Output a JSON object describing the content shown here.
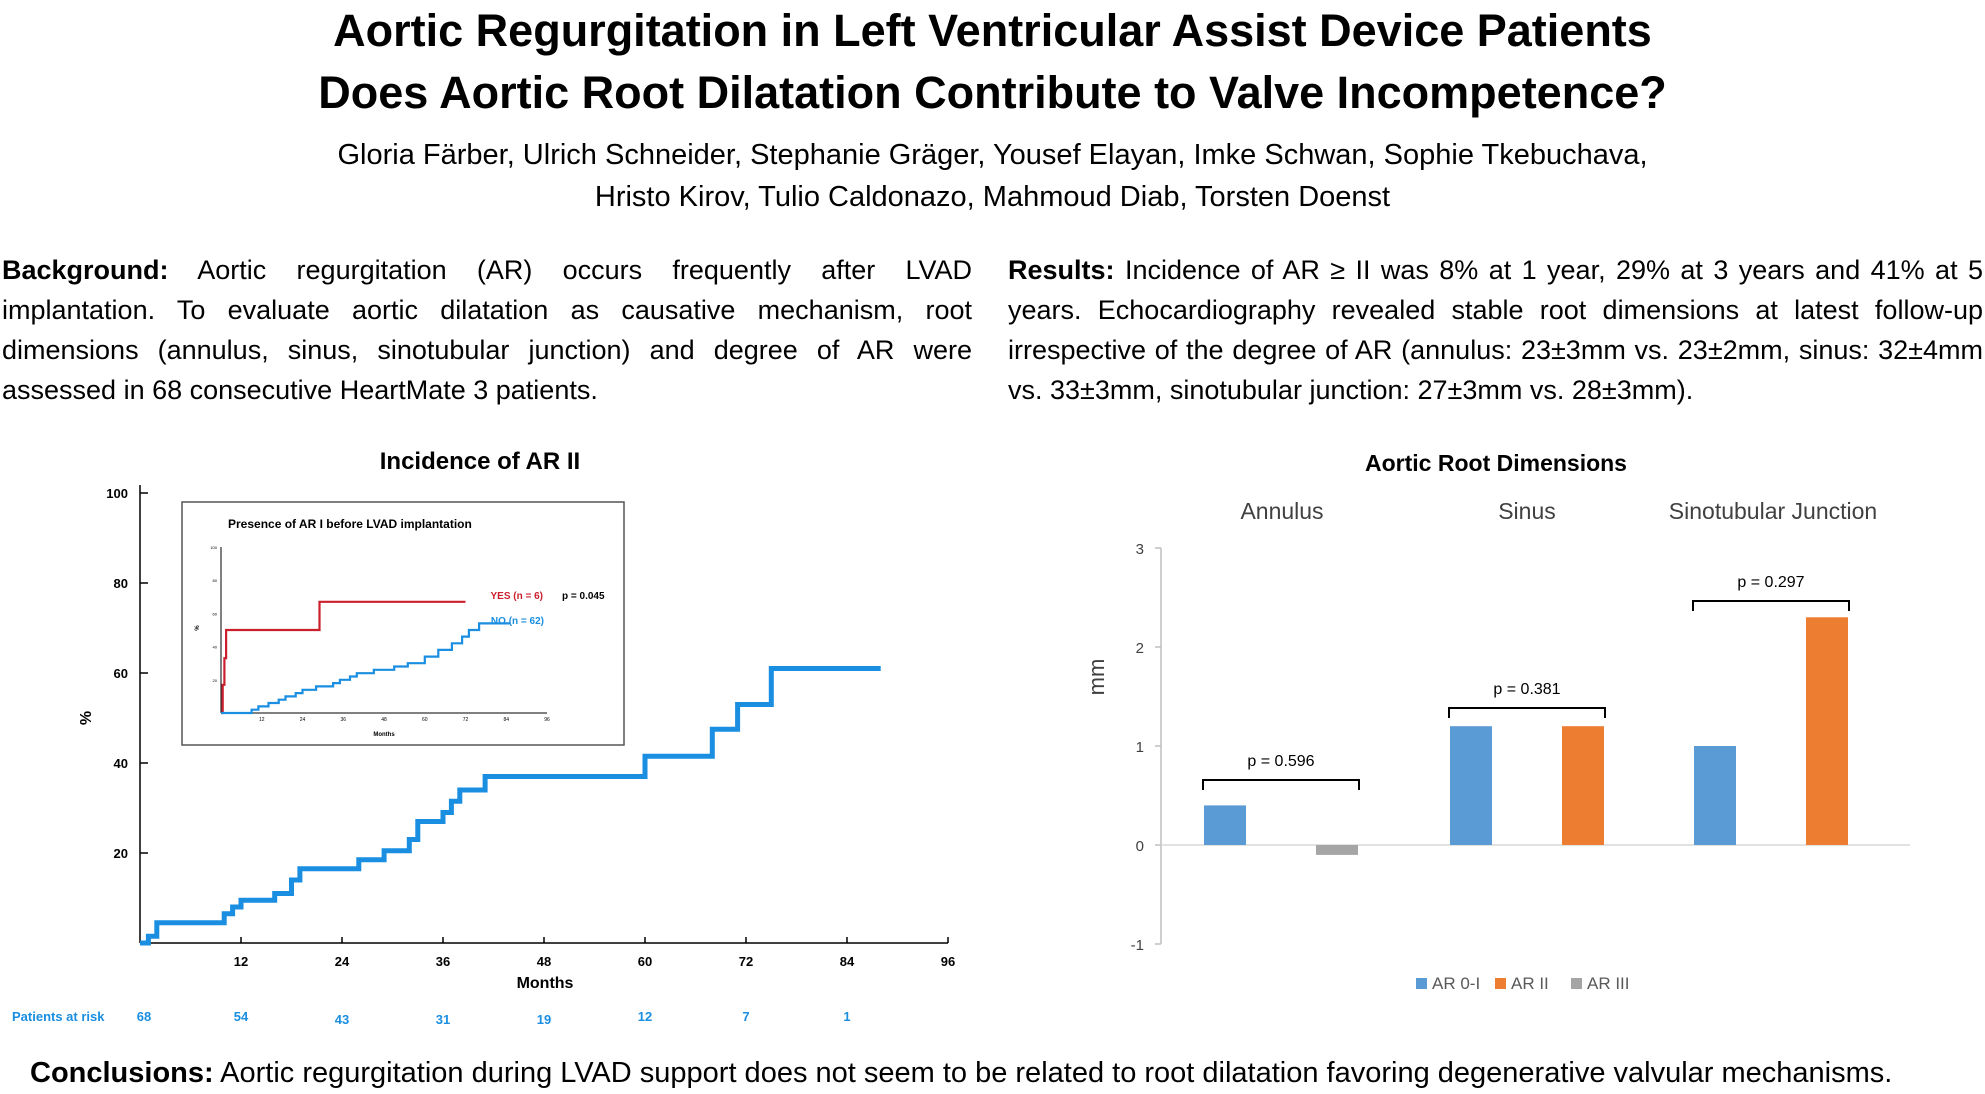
{
  "title_line1": "Aortic Regurgitation in Left Ventricular Assist Device Patients",
  "title_line2": "Does Aortic Root Dilatation Contribute to Valve Incompetence?",
  "authors_line1": "Gloria Färber, Ulrich Schneider, Stephanie Gräger, Yousef Elayan, Imke Schwan, Sophie Tkebuchava,",
  "authors_line2": "Hristo Kirov, Tulio Caldonazo, Mahmoud Diab, Torsten Doenst",
  "background": {
    "heading": "Background:",
    "text": "Aortic regurgitation (AR) occurs frequently after LVAD implantation. To evaluate aortic dilatation as causative mechanism, root dimensions (annulus, sinus, sinotubular junction) and degree of AR were assessed in 68 consecutive HeartMate 3 patients."
  },
  "results": {
    "heading": "Results:",
    "text": "Incidence of AR ≥ II was 8% at 1 year, 29% at 3 years and 41% at 5 years. Echocardiography revealed stable root dimensions at latest follow-up irrespective of the degree of AR (annulus: 23±3mm vs. 23±2mm, sinus: 32±4mm vs. 33±3mm, sinotubular junction: 27±3mm vs. 28±3mm)."
  },
  "conclusions": {
    "heading": "Conclusions:",
    "text": "Aortic regurgitation during LVAD support does not seem to be related to root dilatation favoring degenerative valvular mechanisms."
  },
  "chart_data": [
    {
      "type": "line",
      "title": "Incidence of AR II",
      "xlabel": "Months",
      "ylabel": "%",
      "xlim": [
        0,
        96
      ],
      "ylim": [
        0,
        100
      ],
      "x_ticks": [
        "12",
        "24",
        "36",
        "48",
        "60",
        "72",
        "84",
        "96"
      ],
      "y_ticks": [
        "20",
        "40",
        "60",
        "80",
        "100"
      ],
      "step": true,
      "series": [
        {
          "color": "#1a8ee0",
          "points": [
            [
              0,
              0
            ],
            [
              1,
              0
            ],
            [
              1,
              1.5
            ],
            [
              2,
              1.5
            ],
            [
              2,
              4.5
            ],
            [
              10,
              4.5
            ],
            [
              10,
              6.5
            ],
            [
              11,
              6.5
            ],
            [
              11,
              8
            ],
            [
              12,
              8
            ],
            [
              12,
              9.5
            ],
            [
              16,
              9.5
            ],
            [
              16,
              11
            ],
            [
              18,
              11
            ],
            [
              18,
              14
            ],
            [
              19,
              14
            ],
            [
              19,
              16.5
            ],
            [
              26,
              16.5
            ],
            [
              26,
              18.5
            ],
            [
              29,
              18.5
            ],
            [
              29,
              20.5
            ],
            [
              32,
              20.5
            ],
            [
              32,
              23
            ],
            [
              33,
              23
            ],
            [
              33,
              27
            ],
            [
              36,
              27
            ],
            [
              36,
              29
            ],
            [
              37,
              29
            ],
            [
              37,
              31.5
            ],
            [
              38,
              31.5
            ],
            [
              38,
              34
            ],
            [
              41,
              34
            ],
            [
              41,
              37
            ],
            [
              60,
              37
            ],
            [
              60,
              41.5
            ],
            [
              68,
              41.5
            ],
            [
              68,
              47.5
            ],
            [
              71,
              47.5
            ],
            [
              71,
              53
            ],
            [
              75,
              53
            ],
            [
              75,
              61
            ],
            [
              88,
              61
            ]
          ]
        }
      ],
      "at_risk": {
        "label": "Patients at risk",
        "months": [
          0,
          12,
          24,
          36,
          48,
          60,
          72,
          84
        ],
        "values": [
          "68",
          "54",
          "43",
          "31",
          "19",
          "12",
          "7",
          "1"
        ]
      },
      "inset": {
        "title": "Presence of AR I before LVAD implantation",
        "xlabel": "Months",
        "ylabel": "%",
        "x_ticks": [
          "12",
          "24",
          "36",
          "48",
          "60",
          "72",
          "84",
          "96"
        ],
        "y_ticks": [
          "20",
          "40",
          "60",
          "80",
          "100"
        ],
        "p_value": "p = 0.045",
        "series": [
          {
            "name": "YES (n = 6)",
            "color": "#cc1f2d",
            "points": [
              [
                0,
                0
              ],
              [
                0.5,
                0
              ],
              [
                0.5,
                17
              ],
              [
                1,
                17
              ],
              [
                1,
                33
              ],
              [
                1.5,
                33
              ],
              [
                1.5,
                50
              ],
              [
                29,
                50
              ],
              [
                29,
                67
              ],
              [
                72,
                67
              ]
            ]
          },
          {
            "name": "NO (n = 62)",
            "color": "#1a8ee0",
            "points": [
              [
                0,
                0
              ],
              [
                9,
                0
              ],
              [
                9,
                2
              ],
              [
                11,
                2
              ],
              [
                11,
                4
              ],
              [
                14,
                4
              ],
              [
                14,
                6
              ],
              [
                17,
                6
              ],
              [
                17,
                8
              ],
              [
                19,
                8
              ],
              [
                19,
                10
              ],
              [
                22,
                10
              ],
              [
                22,
                12
              ],
              [
                24,
                12
              ],
              [
                24,
                14
              ],
              [
                28,
                14
              ],
              [
                28,
                16
              ],
              [
                33,
                16
              ],
              [
                33,
                18
              ],
              [
                35,
                18
              ],
              [
                35,
                20
              ],
              [
                38,
                20
              ],
              [
                38,
                22
              ],
              [
                40,
                22
              ],
              [
                40,
                24
              ],
              [
                45,
                24
              ],
              [
                45,
                26
              ],
              [
                51,
                26
              ],
              [
                51,
                28
              ],
              [
                55,
                28
              ],
              [
                55,
                30
              ],
              [
                60,
                30
              ],
              [
                60,
                34
              ],
              [
                64,
                34
              ],
              [
                64,
                38
              ],
              [
                68,
                38
              ],
              [
                68,
                42
              ],
              [
                71,
                42
              ],
              [
                71,
                46
              ],
              [
                73,
                46
              ],
              [
                73,
                50
              ],
              [
                76,
                50
              ],
              [
                76,
                54
              ],
              [
                85,
                54
              ]
            ]
          }
        ]
      }
    },
    {
      "type": "bar",
      "title": "Aortic Root Dimensions",
      "ylabel": "mm",
      "ylim": [
        -1,
        3
      ],
      "y_ticks": [
        "-1",
        "0",
        "1",
        "2",
        "3"
      ],
      "categories": [
        "Annulus",
        "Sinus",
        "Sinotubular Junction"
      ],
      "series": [
        {
          "name": "AR 0-I",
          "color": "#5b9bd5",
          "values": [
            0.4,
            1.2,
            1.0
          ]
        },
        {
          "name": "AR II",
          "color": "#ed7d31",
          "values": [
            null,
            1.2,
            2.3
          ]
        },
        {
          "name": "AR III",
          "color": "#a5a5a5",
          "values": [
            -0.1,
            null,
            null
          ]
        }
      ],
      "p_values": [
        "p = 0.596",
        "p = 0.381",
        "p = 0.297"
      ],
      "legend_position": "bottom"
    }
  ]
}
